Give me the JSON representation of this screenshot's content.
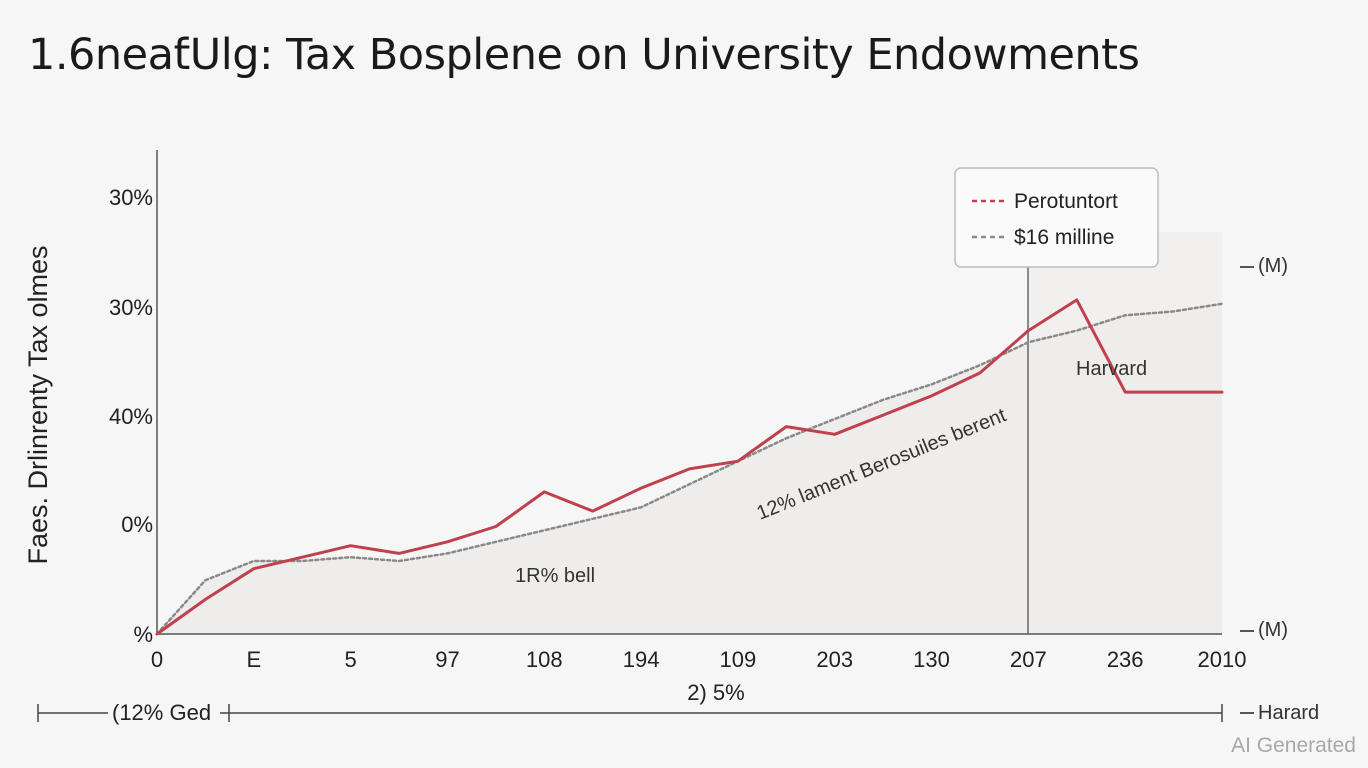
{
  "chart_data": {
    "type": "line",
    "title": "1.6neaƭUlg: Tax Bosplene on University Endowments",
    "ylabel": "Faes. Drlinrenty Tax olmes",
    "y_tick_labels": [
      "%",
      "0%",
      "40%",
      "30%",
      "30%"
    ],
    "x_tick_labels": [
      "0",
      "E",
      "5",
      "97",
      "108",
      "194",
      "109",
      "203",
      "130",
      "207",
      "236",
      "2010"
    ],
    "x": [
      0,
      0.5,
      1,
      1.5,
      2,
      2.5,
      3,
      3.5,
      4,
      4.5,
      5,
      5.5,
      6,
      6.5,
      7,
      7.5,
      8,
      8.5,
      9,
      9.5,
      10,
      10.5,
      11
    ],
    "ylim": [
      0,
      100
    ],
    "series": [
      {
        "name": "Perotuntort",
        "style": "dashed",
        "color": "#c0404e",
        "values": [
          0,
          9,
          17,
          20,
          23,
          21,
          24,
          28,
          37,
          32,
          38,
          43,
          45,
          54,
          52,
          57,
          62,
          68,
          79,
          87,
          63,
          63,
          63
        ]
      },
      {
        "name": "$16 milline",
        "style": "dashed",
        "color": "#8a8a8a",
        "values": [
          0,
          14,
          19,
          19,
          20,
          19,
          21,
          24,
          27,
          30,
          33,
          39,
          45,
          51,
          56,
          61,
          65,
          70,
          76,
          79,
          83,
          84,
          86
        ]
      }
    ],
    "annotations": {
      "low_label": "1R% bell",
      "mid_label": "12% lament Berosuiles berent",
      "right_label": "Harvard",
      "right_top": "(M)",
      "right_bottom": "(M)",
      "x_sub": "2) 5%",
      "range_label": "(12% Ged",
      "range_right": "Harard"
    },
    "legend_position": "top-right",
    "grid": false,
    "colors": {
      "red": "#c0404e",
      "gray": "#8a8a8a",
      "axis": "#555555"
    }
  },
  "watermark": "AI Generated"
}
